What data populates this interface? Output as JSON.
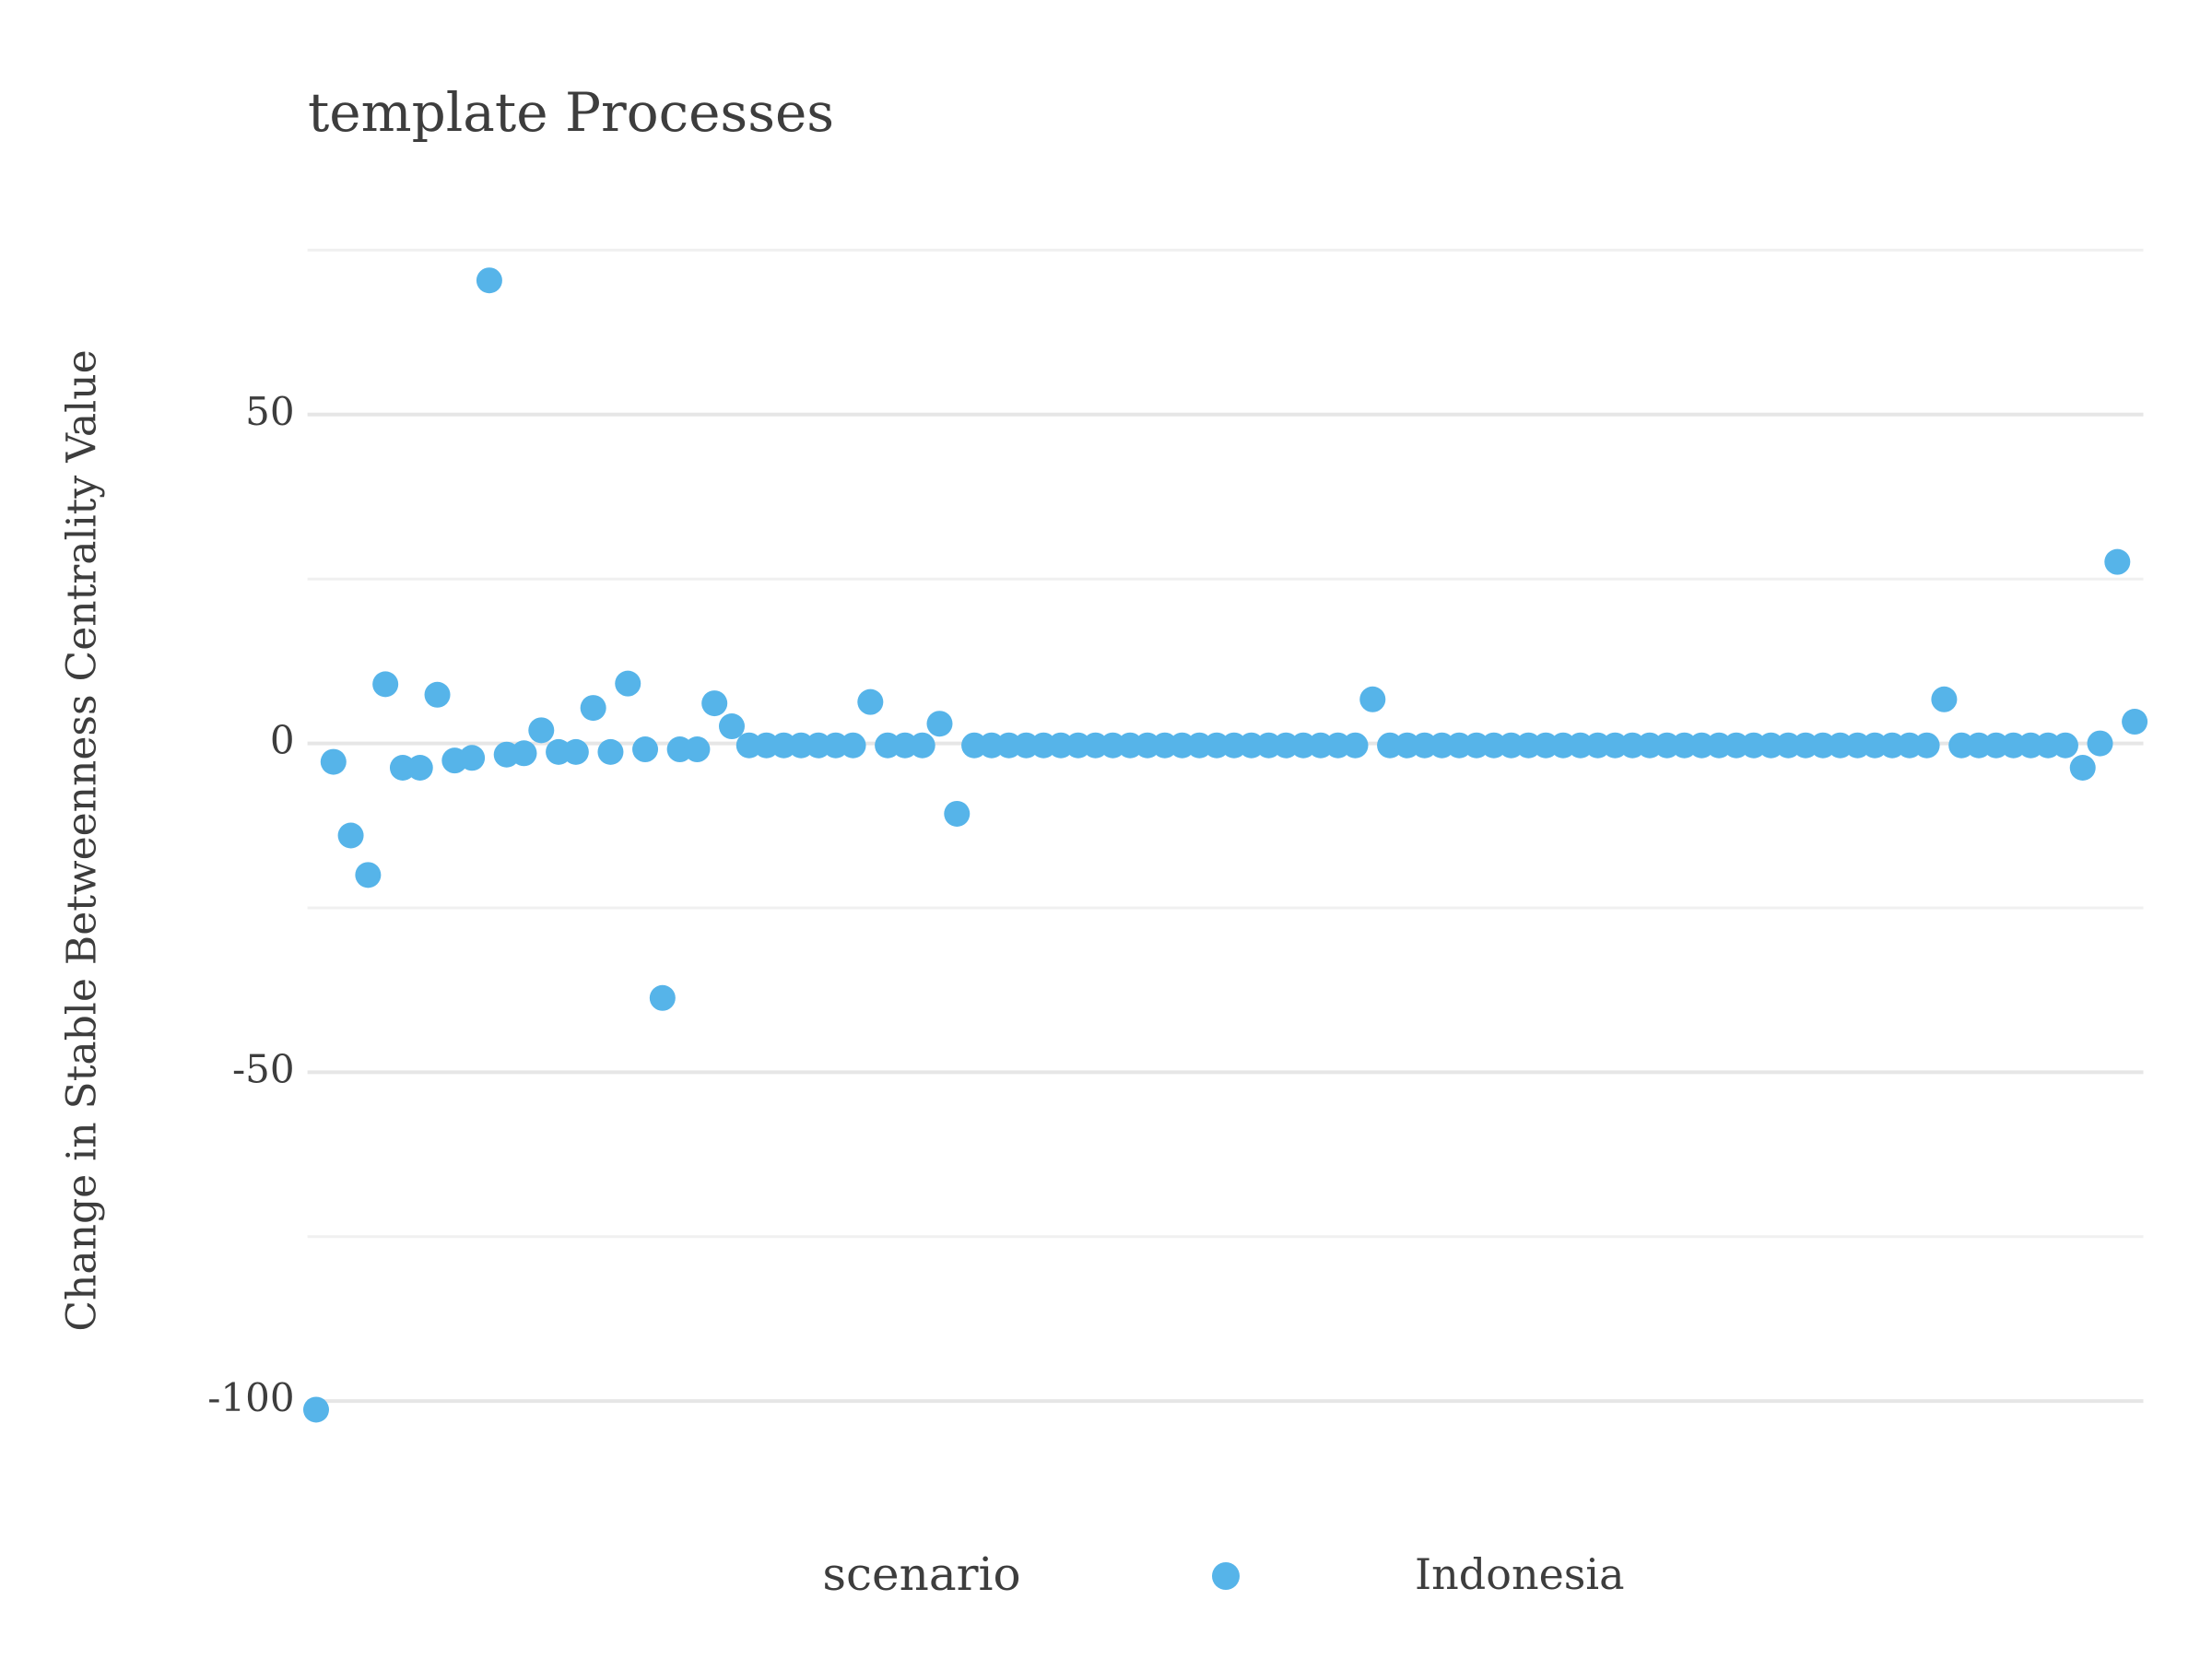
{
  "chart_data": {
    "type": "scatter",
    "title": "template Processes",
    "y_label": "Change in Stable Betweenness Centrality Value",
    "categories": [
      null,
      null,
      null,
      null,
      null,
      null,
      null,
      null,
      null,
      null,
      null,
      null,
      null,
      null,
      null,
      null,
      null,
      null,
      null,
      null,
      null,
      null,
      null,
      null,
      null,
      null,
      null,
      null,
      null,
      null,
      null,
      null,
      null,
      null,
      null,
      null,
      null,
      null,
      null,
      null,
      null,
      null,
      null,
      null,
      null,
      null,
      null,
      null,
      null,
      null,
      null,
      null,
      null,
      null,
      null,
      null,
      null,
      null,
      null,
      null,
      null,
      null,
      null,
      null,
      null,
      null,
      null,
      null,
      null,
      null,
      null,
      null,
      null,
      null,
      null,
      null,
      null,
      null,
      null,
      null,
      null,
      null,
      null,
      null,
      null,
      null,
      null,
      null,
      null,
      null,
      null,
      null,
      null,
      null,
      null,
      null,
      null,
      null,
      null,
      null,
      null,
      null,
      null,
      null,
      null,
      null
    ],
    "series": [
      {
        "name": "Indonesia",
        "color": "#56B4E9",
        "values": [
          -101.3,
          -2.8,
          -14,
          -20,
          9,
          -3.7,
          -3.7,
          7.4,
          -2.6,
          -2.2,
          70.4,
          -1.7,
          -1.5,
          2,
          -1.3,
          -1.3,
          5.4,
          -1.3,
          9.1,
          -0.9,
          -38.7,
          -0.9,
          -0.9,
          6.1,
          2.6,
          -0.3,
          -0.3,
          -0.3,
          -0.3,
          -0.3,
          -0.3,
          -0.3,
          6.3,
          -0.3,
          -0.3,
          -0.3,
          3,
          -10.7,
          -0.3,
          -0.3,
          -0.3,
          -0.3,
          -0.3,
          -0.3,
          -0.3,
          -0.3,
          -0.3,
          -0.3,
          -0.3,
          -0.3,
          -0.3,
          -0.3,
          -0.3,
          -0.3,
          -0.3,
          -0.3,
          -0.3,
          -0.3,
          -0.3,
          -0.3,
          -0.3,
          6.7,
          -0.3,
          -0.3,
          -0.3,
          -0.3,
          -0.3,
          -0.3,
          -0.3,
          -0.3,
          -0.3,
          -0.3,
          -0.3,
          -0.3,
          -0.3,
          -0.3,
          -0.3,
          -0.3,
          -0.3,
          -0.3,
          -0.3,
          -0.3,
          -0.3,
          -0.3,
          -0.3,
          -0.3,
          -0.3,
          -0.3,
          -0.3,
          -0.3,
          -0.3,
          -0.3,
          -0.3,
          -0.3,
          6.7,
          -0.3,
          -0.3,
          -0.3,
          -0.3,
          -0.3,
          -0.3,
          -0.3,
          -3.7,
          0,
          27.6,
          3.3
        ]
      }
    ],
    "ylim": [
      -106,
      78
    ],
    "yticks": [
      -100,
      -50,
      0,
      50
    ],
    "minor_yticks": [
      -75,
      -25,
      25,
      75
    ],
    "grid": true,
    "legend_title": "scenario",
    "legend": "bottom"
  }
}
